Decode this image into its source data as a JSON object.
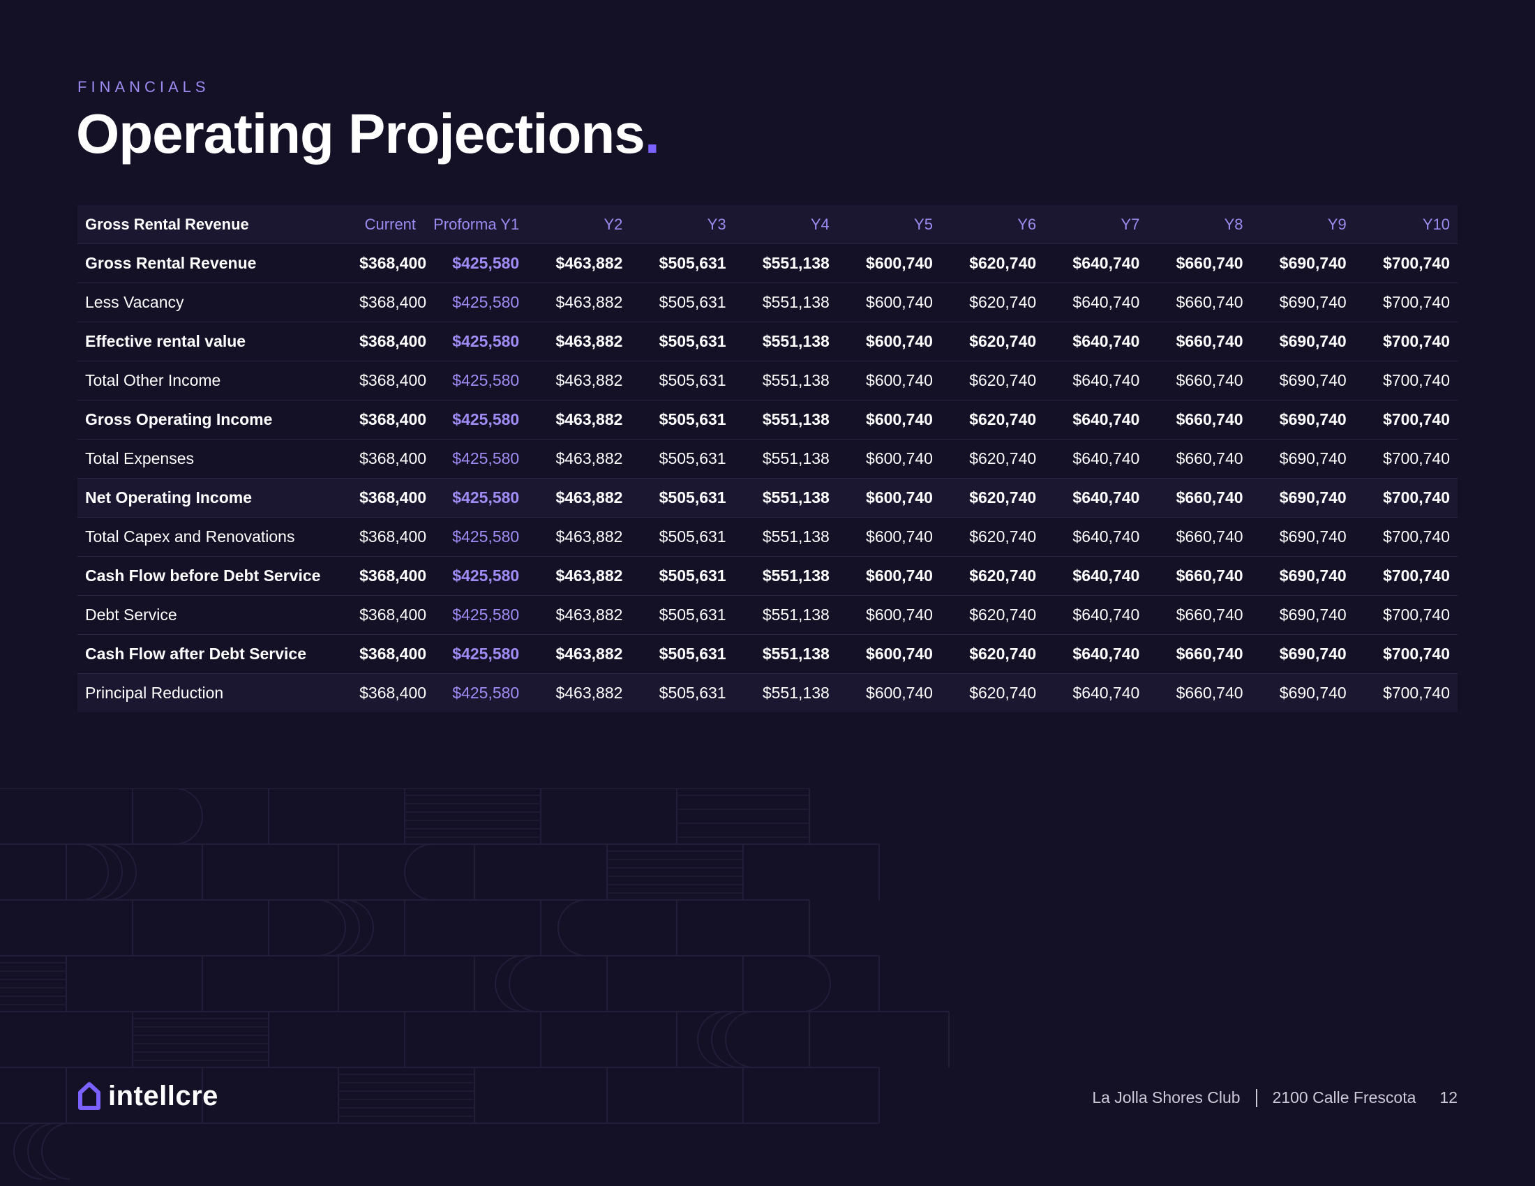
{
  "section_label": "FINANCIALS",
  "title": "Operating Projections",
  "title_dot": ".",
  "table": {
    "header": [
      "Gross Rental Revenue",
      "Current",
      "Proforma Y1",
      "Y2",
      "Y3",
      "Y4",
      "Y5",
      "Y6",
      "Y7",
      "Y8",
      "Y9",
      "Y10"
    ],
    "rows": [
      {
        "label": "Gross Rental Revenue",
        "bold": true,
        "values": [
          "$368,400",
          "$425,580",
          "$463,882",
          "$505,631",
          "$551,138",
          "$600,740",
          "$620,740",
          "$640,740",
          "$660,740",
          "$690,740",
          "$700,740"
        ]
      },
      {
        "label": "Less Vacancy",
        "bold": false,
        "values": [
          "$368,400",
          "$425,580",
          "$463,882",
          "$505,631",
          "$551,138",
          "$600,740",
          "$620,740",
          "$640,740",
          "$660,740",
          "$690,740",
          "$700,740"
        ]
      },
      {
        "label": "Effective rental value",
        "bold": true,
        "values": [
          "$368,400",
          "$425,580",
          "$463,882",
          "$505,631",
          "$551,138",
          "$600,740",
          "$620,740",
          "$640,740",
          "$660,740",
          "$690,740",
          "$700,740"
        ]
      },
      {
        "label": "Total Other Income",
        "bold": false,
        "values": [
          "$368,400",
          "$425,580",
          "$463,882",
          "$505,631",
          "$551,138",
          "$600,740",
          "$620,740",
          "$640,740",
          "$660,740",
          "$690,740",
          "$700,740"
        ]
      },
      {
        "label": "Gross Operating Income",
        "bold": true,
        "values": [
          "$368,400",
          "$425,580",
          "$463,882",
          "$505,631",
          "$551,138",
          "$600,740",
          "$620,740",
          "$640,740",
          "$660,740",
          "$690,740",
          "$700,740"
        ]
      },
      {
        "label": "Total Expenses",
        "bold": false,
        "values": [
          "$368,400",
          "$425,580",
          "$463,882",
          "$505,631",
          "$551,138",
          "$600,740",
          "$620,740",
          "$640,740",
          "$660,740",
          "$690,740",
          "$700,740"
        ]
      },
      {
        "label": "Net Operating Income",
        "bold": true,
        "shade": true,
        "values": [
          "$368,400",
          "$425,580",
          "$463,882",
          "$505,631",
          "$551,138",
          "$600,740",
          "$620,740",
          "$640,740",
          "$660,740",
          "$690,740",
          "$700,740"
        ]
      },
      {
        "label": "Total Capex and Renovations",
        "bold": false,
        "values": [
          "$368,400",
          "$425,580",
          "$463,882",
          "$505,631",
          "$551,138",
          "$600,740",
          "$620,740",
          "$640,740",
          "$660,740",
          "$690,740",
          "$700,740"
        ]
      },
      {
        "label": "Cash Flow before Debt Service",
        "bold": true,
        "values": [
          "$368,400",
          "$425,580",
          "$463,882",
          "$505,631",
          "$551,138",
          "$600,740",
          "$620,740",
          "$640,740",
          "$660,740",
          "$690,740",
          "$700,740"
        ]
      },
      {
        "label": "Debt Service",
        "bold": false,
        "values": [
          "$368,400",
          "$425,580",
          "$463,882",
          "$505,631",
          "$551,138",
          "$600,740",
          "$620,740",
          "$640,740",
          "$660,740",
          "$690,740",
          "$700,740"
        ]
      },
      {
        "label": "Cash Flow after Debt Service",
        "bold": true,
        "values": [
          "$368,400",
          "$425,580",
          "$463,882",
          "$505,631",
          "$551,138",
          "$600,740",
          "$620,740",
          "$640,740",
          "$660,740",
          "$690,740",
          "$700,740"
        ]
      },
      {
        "label": "Principal Reduction",
        "bold": false,
        "shade": true,
        "values": [
          "$368,400",
          "$425,580",
          "$463,882",
          "$505,631",
          "$551,138",
          "$600,740",
          "$620,740",
          "$640,740",
          "$660,740",
          "$690,740",
          "$700,740"
        ]
      }
    ]
  },
  "logo": {
    "text": "intellcre",
    "icon": "house-icon"
  },
  "footer": {
    "property": "La Jolla Shores Club",
    "address": "2100 Calle Frescota",
    "page": "12"
  },
  "colors": {
    "background": "#141026",
    "accent": "#7b61ff",
    "proforma": "#a08cf5",
    "header_text": "#9b8cf2"
  }
}
